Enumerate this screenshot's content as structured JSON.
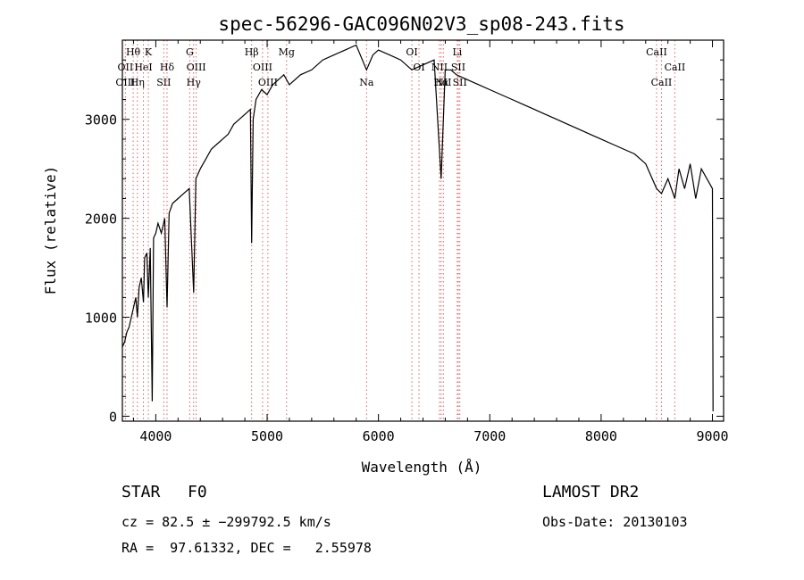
{
  "chart_data": {
    "type": "line",
    "title": "spec-56296-GAC096N02V3_sp08-243.fits",
    "xlabel": "Wavelength (Å)",
    "ylabel": "Flux (relative)",
    "xlim": [
      3700,
      9100
    ],
    "ylim": [
      -50,
      3800
    ],
    "x_ticks": [
      4000,
      5000,
      6000,
      7000,
      8000,
      9000
    ],
    "y_ticks": [
      0,
      1000,
      2000,
      3000
    ],
    "grid": false,
    "line_color": "#000000",
    "marker_color": "#e06060",
    "series": [
      {
        "x": [
          3700,
          3720,
          3740,
          3760,
          3780,
          3800,
          3820,
          3835,
          3850,
          3870,
          3889,
          3900,
          3920,
          3933,
          3950,
          3968,
          3980,
          4000,
          4020,
          4050,
          4080,
          4101,
          4120,
          4150,
          4200,
          4250,
          4300,
          4340,
          4360,
          4400,
          4450,
          4500,
          4550,
          4600,
          4650,
          4700,
          4750,
          4800,
          4850,
          4861,
          4875,
          4900,
          4950,
          5000,
          5050,
          5100,
          5150,
          5200,
          5300,
          5400,
          5500,
          5600,
          5700,
          5800,
          5893,
          5950,
          6000,
          6100,
          6200,
          6300,
          6400,
          6500,
          6563,
          6600,
          6650,
          6700,
          6800,
          6900,
          7000,
          7100,
          7200,
          7300,
          7400,
          7500,
          7600,
          7700,
          7800,
          7900,
          8000,
          8100,
          8200,
          8300,
          8400,
          8498,
          8542,
          8600,
          8662,
          8700,
          8750,
          8800,
          8850,
          8900,
          8950,
          9000,
          9005
        ],
        "y": [
          700,
          750,
          850,
          900,
          1000,
          1100,
          1200,
          1000,
          1300,
          1400,
          1150,
          1600,
          1650,
          1200,
          1700,
          150,
          1800,
          1850,
          1950,
          1850,
          2000,
          1100,
          2050,
          2150,
          2200,
          2250,
          2300,
          1250,
          2400,
          2500,
          2600,
          2700,
          2750,
          2800,
          2850,
          2950,
          3000,
          3050,
          3100,
          1750,
          3000,
          3200,
          3300,
          3250,
          3350,
          3400,
          3450,
          3350,
          3450,
          3500,
          3600,
          3650,
          3700,
          3750,
          3500,
          3650,
          3700,
          3650,
          3600,
          3500,
          3550,
          3600,
          2400,
          3500,
          3500,
          3450,
          3400,
          3350,
          3300,
          3250,
          3200,
          3150,
          3100,
          3050,
          3000,
          2950,
          2900,
          2850,
          2800,
          2750,
          2700,
          2650,
          2550,
          2300,
          2250,
          2400,
          2200,
          2500,
          2300,
          2550,
          2200,
          2500,
          2400,
          2300,
          50
        ]
      }
    ],
    "lines": [
      {
        "label": "Hθ",
        "w": 3797,
        "row": 0
      },
      {
        "label": "K",
        "w": 3933,
        "row": 0
      },
      {
        "label": "OII",
        "w": 3727,
        "row": 1
      },
      {
        "label": "HeI",
        "w": 3889,
        "row": 1
      },
      {
        "label": "Hδ",
        "w": 4101,
        "row": 1
      },
      {
        "label": "OIII",
        "w": 3727,
        "row": 2
      },
      {
        "label": "Hη",
        "w": 3835,
        "row": 2
      },
      {
        "label": "SII",
        "w": 4072,
        "row": 2
      },
      {
        "label": "G",
        "w": 4305,
        "row": 0
      },
      {
        "label": "OIII",
        "w": 4363,
        "row": 1
      },
      {
        "label": "Hγ",
        "w": 4340,
        "row": 2
      },
      {
        "label": "Hβ",
        "w": 4861,
        "row": 0
      },
      {
        "label": "Mg",
        "w": 5175,
        "row": 0
      },
      {
        "label": "OIII",
        "w": 4959,
        "row": 1
      },
      {
        "label": "OIII",
        "w": 5007,
        "row": 2
      },
      {
        "label": "Na",
        "w": 5893,
        "row": 2
      },
      {
        "label": "OI",
        "w": 6300,
        "row": 0
      },
      {
        "label": "OI",
        "w": 6364,
        "row": 1
      },
      {
        "label": "Li",
        "w": 6708,
        "row": 0
      },
      {
        "label": "NII",
        "w": 6548,
        "row": 1
      },
      {
        "label": "SII",
        "w": 6717,
        "row": 1
      },
      {
        "label": "Hα",
        "w": 6563,
        "row": 2
      },
      {
        "label": "NII",
        "w": 6583,
        "row": 2
      },
      {
        "label": "SII",
        "w": 6731,
        "row": 2
      },
      {
        "label": "CaII",
        "w": 8498,
        "row": 0
      },
      {
        "label": "CaII",
        "w": 8662,
        "row": 1
      },
      {
        "label": "CaII",
        "w": 8542,
        "row": 2
      }
    ]
  },
  "footer": {
    "object_class": "STAR",
    "subclass": "F0",
    "survey": "LAMOST DR2",
    "cz": "cz = 82.5 ± −299792.5 km/s",
    "obs_date": "Obs-Date: 20130103",
    "coords": "RA =  97.61332, DEC =   2.55978"
  }
}
